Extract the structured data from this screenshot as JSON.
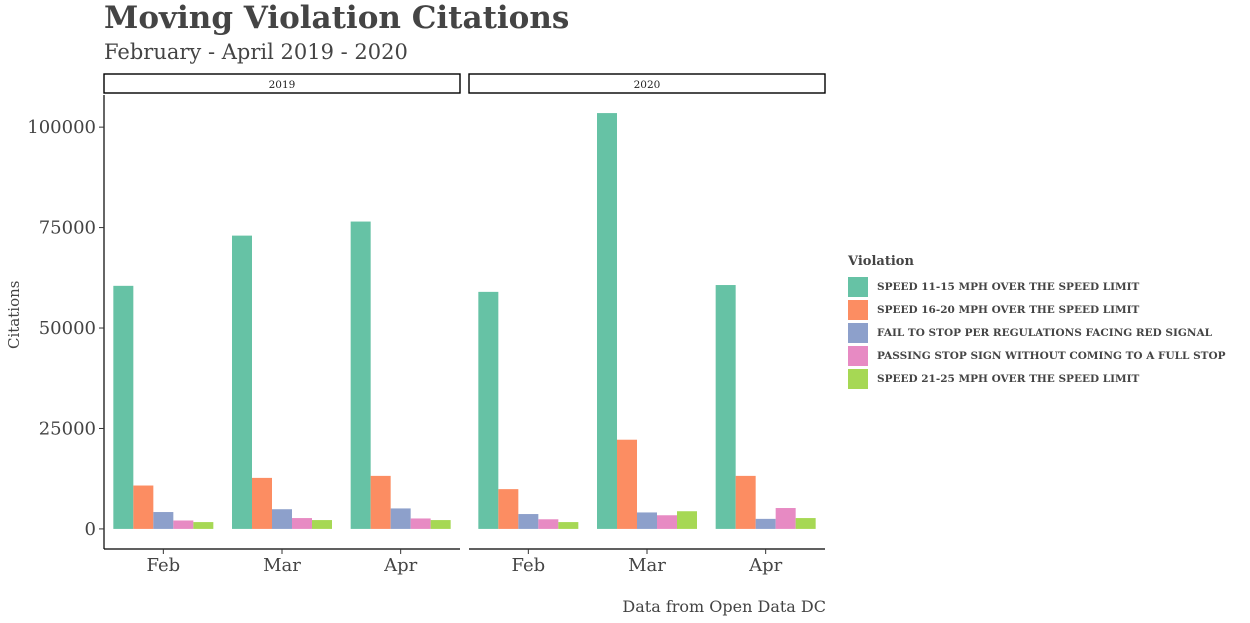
{
  "header": {
    "title": "Moving Violation Citations",
    "subtitle": "February - April 2019 - 2020",
    "caption": "Data from Open Data DC"
  },
  "chart_data": {
    "type": "bar",
    "ylabel": "Citations",
    "ylim": [
      -5000,
      108000
    ],
    "yticks": [
      0,
      25000,
      50000,
      75000,
      100000
    ],
    "yticklabels": [
      "0",
      "25000",
      "50000",
      "75000",
      "100000"
    ],
    "categories": [
      "Feb",
      "Mar",
      "Apr"
    ],
    "legend": {
      "title": "Violation",
      "placement": "right"
    },
    "series": [
      {
        "name": "SPEED 11-15 MPH OVER THE SPEED LIMIT",
        "color": "#66c2a5"
      },
      {
        "name": "SPEED 16-20 MPH OVER THE SPEED LIMIT",
        "color": "#fc8d62"
      },
      {
        "name": "FAIL TO STOP PER REGULATIONS FACING RED SIGNAL",
        "color": "#8da0cb"
      },
      {
        "name": "PASSING STOP SIGN WITHOUT COMING TO A FULL STOP",
        "color": "#e78ac3"
      },
      {
        "name": "SPEED 21-25 MPH OVER THE SPEED LIMIT",
        "color": "#a6d854"
      }
    ],
    "facets": [
      {
        "label": "2019",
        "values": [
          [
            60500,
            73000,
            76500
          ],
          [
            10800,
            12700,
            13200
          ],
          [
            4200,
            4900,
            5100
          ],
          [
            2100,
            2700,
            2600
          ],
          [
            1700,
            2200,
            2200
          ]
        ]
      },
      {
        "label": "2020",
        "values": [
          [
            59000,
            103500,
            60700
          ],
          [
            9900,
            22200,
            13200
          ],
          [
            3700,
            4100,
            2500
          ],
          [
            2400,
            3400,
            5200
          ],
          [
            1700,
            4400,
            2700
          ]
        ]
      }
    ]
  }
}
